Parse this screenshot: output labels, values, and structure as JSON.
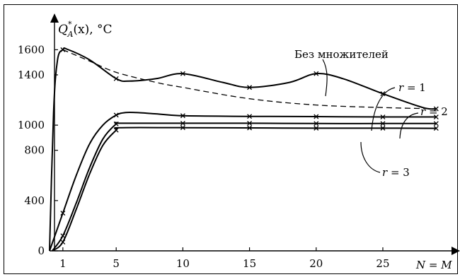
{
  "chart_data": {
    "type": "line",
    "ylabel": {
      "q": "Q",
      "sup": "*",
      "sub": "A",
      "rest": "(x), °C"
    },
    "xlabel": "N = M",
    "x_ticks": [
      1,
      5,
      10,
      15,
      20,
      25
    ],
    "y_ticks": [
      0,
      400,
      800,
      1000,
      1400,
      1600
    ],
    "x_tick_labels": [
      "1",
      "5",
      "10",
      "15",
      "20",
      "25"
    ],
    "y_tick_labels": [
      "0",
      "400",
      "800",
      "1000",
      "1400",
      "1600"
    ],
    "xlim": [
      0,
      31
    ],
    "ylim": [
      0,
      1900
    ],
    "grid": false,
    "series": [
      {
        "name": "Без множителей",
        "style": "solid",
        "markers": "x",
        "x": [
          0,
          0.3,
          0.6,
          1,
          1.3,
          3,
          5,
          6,
          8,
          10,
          13,
          15,
          18,
          20,
          22,
          25,
          28,
          29
        ],
        "y": [
          0,
          1100,
          1520,
          1600,
          1605,
          1520,
          1370,
          1350,
          1370,
          1410,
          1340,
          1300,
          1340,
          1410,
          1370,
          1250,
          1140,
          1130
        ]
      },
      {
        "name": "",
        "style": "dashed",
        "markers": "none",
        "x": [
          1,
          3,
          5,
          8,
          10,
          15,
          20,
          25,
          29
        ],
        "y": [
          1600,
          1510,
          1420,
          1340,
          1300,
          1210,
          1160,
          1140,
          1130
        ]
      },
      {
        "name": "r = 1",
        "style": "solid",
        "markers": "x",
        "x": [
          0,
          1,
          2,
          3,
          4,
          5,
          5.7,
          6.5,
          8,
          10,
          15,
          20,
          25,
          29
        ],
        "y": [
          0,
          300,
          600,
          850,
          1000,
          1080,
          1100,
          1100,
          1090,
          1075,
          1070,
          1068,
          1065,
          1065
        ]
      },
      {
        "name": "r = 2",
        "style": "solid",
        "markers": "x",
        "x": [
          0.2,
          1,
          2,
          3,
          4,
          5,
          5.3,
          10,
          15,
          20,
          25,
          29
        ],
        "y": [
          0,
          120,
          380,
          660,
          890,
          1010,
          1015,
          1015,
          1015,
          1013,
          1013,
          1013
        ]
      },
      {
        "name": "r = 3",
        "style": "solid",
        "markers": "x",
        "x": [
          0.2,
          1,
          2,
          3,
          4,
          5,
          5.3,
          10,
          15,
          20,
          25,
          29
        ],
        "y": [
          0,
          70,
          330,
          610,
          840,
          960,
          980,
          980,
          978,
          976,
          976,
          975
        ]
      }
    ],
    "annotations": [
      {
        "text": "Без множителей",
        "series": 0
      },
      {
        "text": "r",
        "suffix": " = 1",
        "series": 2
      },
      {
        "text": "r",
        "suffix": " = 2",
        "series": 3
      },
      {
        "text": "r",
        "suffix": " = 3",
        "series": 4
      }
    ]
  }
}
